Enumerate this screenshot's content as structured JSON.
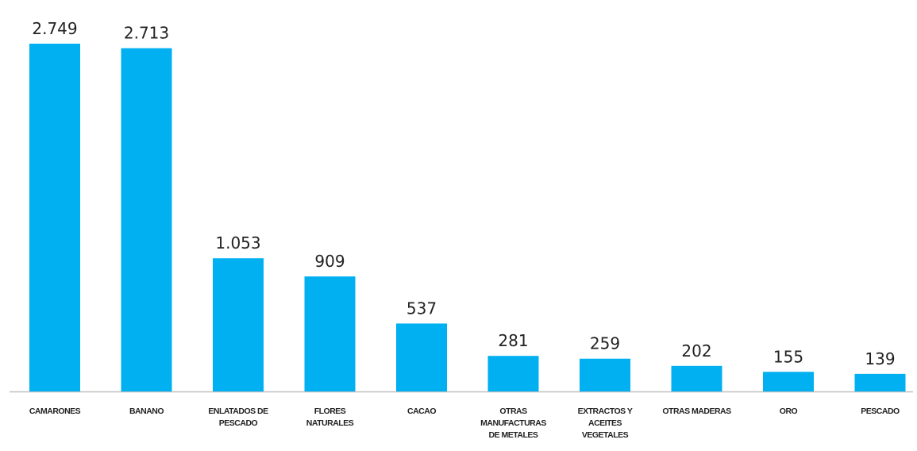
{
  "chart_data": {
    "type": "bar",
    "categories": [
      "CAMARONES",
      "BANANO",
      "ENLATADOS DE PESCADO",
      "FLORES NATURALES",
      "CACAO",
      "OTRAS MANUFACTURAS DE METALES",
      "EXTRACTOS Y ACEITES VEGETALES",
      "OTRAS MADERAS",
      "ORO",
      "PESCADO"
    ],
    "values": [
      2749,
      2713,
      1053,
      909,
      537,
      281,
      259,
      202,
      155,
      139
    ],
    "value_labels": [
      "2.749",
      "2.713",
      "1.053",
      "909",
      "537",
      "281",
      "259",
      "202",
      "155",
      "139"
    ],
    "color": "#00b0f0"
  }
}
